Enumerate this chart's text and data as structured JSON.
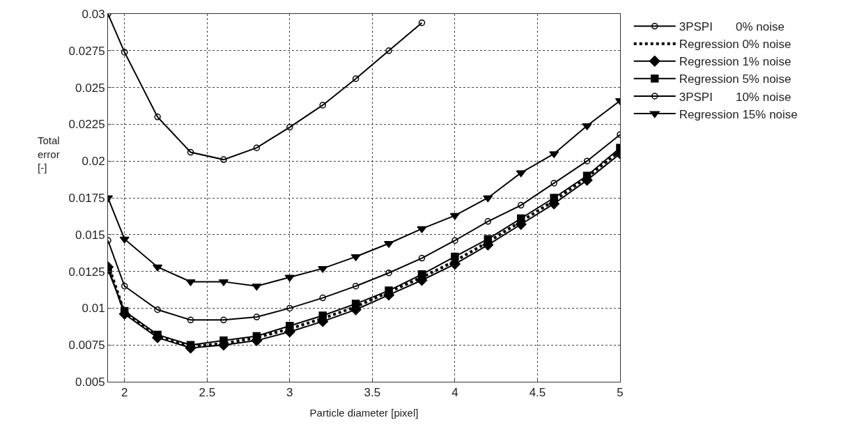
{
  "chart_data": {
    "type": "line",
    "xlabel": "Particle diameter [pixel]",
    "ylabel": "Total\nerror\n[-]",
    "x": [
      1.9,
      2.0,
      2.2,
      2.4,
      2.6,
      2.8,
      3.0,
      3.2,
      3.4,
      3.6,
      3.8,
      4.0,
      4.2,
      4.4,
      4.6,
      4.8,
      5.0
    ],
    "series": [
      {
        "name": "3PSPI       0% noise",
        "color": "#000000",
        "marker": "circle",
        "line_style": "solid",
        "values": [
          0.03,
          0.0274,
          0.023,
          0.0206,
          0.0201,
          0.0209,
          0.0223,
          0.0238,
          0.0256,
          0.0275,
          0.0294,
          null,
          null,
          null,
          null,
          null,
          null
        ]
      },
      {
        "name": "Regression 0% noise",
        "color": "#000000",
        "marker": "none",
        "line_style": "dotted",
        "values": [
          0.013,
          0.0097,
          0.0081,
          0.0074,
          0.0076,
          0.008,
          0.0086,
          0.0093,
          0.0101,
          0.0111,
          0.0121,
          0.0132,
          0.0145,
          0.0159,
          0.0173,
          0.0189,
          0.0207
        ]
      },
      {
        "name": "Regression 1% noise",
        "color": "#000000",
        "marker": "diamond",
        "line_style": "solid",
        "values": [
          0.0128,
          0.0096,
          0.008,
          0.0073,
          0.0075,
          0.0078,
          0.0084,
          0.0091,
          0.0099,
          0.0109,
          0.0119,
          0.013,
          0.0143,
          0.0157,
          0.0171,
          0.0187,
          0.0205
        ]
      },
      {
        "name": "Regression 5% noise",
        "color": "#000000",
        "marker": "square",
        "line_style": "solid",
        "values": [
          0.0126,
          0.0098,
          0.0082,
          0.0075,
          0.0078,
          0.0081,
          0.0088,
          0.0095,
          0.0103,
          0.0112,
          0.0123,
          0.0135,
          0.0147,
          0.0161,
          0.0175,
          0.019,
          0.0209
        ]
      },
      {
        "name": "3PSPI       10% noise",
        "color": "#000000",
        "marker": "circle",
        "line_style": "solid",
        "values": [
          0.0146,
          0.0115,
          0.0099,
          0.0092,
          0.0092,
          0.0094,
          0.01,
          0.0107,
          0.0115,
          0.0124,
          0.0134,
          0.0146,
          0.0159,
          0.017,
          0.0185,
          0.02,
          0.0218
        ]
      },
      {
        "name": "Regression 15% noise",
        "color": "#000000",
        "marker": "triangle",
        "line_style": "solid",
        "values": [
          0.0175,
          0.0147,
          0.0128,
          0.0118,
          0.0118,
          0.0115,
          0.0121,
          0.0127,
          0.0135,
          0.0144,
          0.0154,
          0.0163,
          0.0175,
          0.0192,
          0.0205,
          0.0224,
          0.0241
        ]
      }
    ],
    "xlim": [
      1.9,
      5
    ],
    "xticks": [
      2,
      2.5,
      3,
      3.5,
      4,
      4.5,
      5
    ],
    "ylim": [
      0.005,
      0.03
    ],
    "yticks": [
      0.005,
      0.0075,
      0.01,
      0.0125,
      0.015,
      0.0175,
      0.02,
      0.0225,
      0.025,
      0.0275,
      0.03
    ],
    "grid": true,
    "legend": "top right"
  }
}
